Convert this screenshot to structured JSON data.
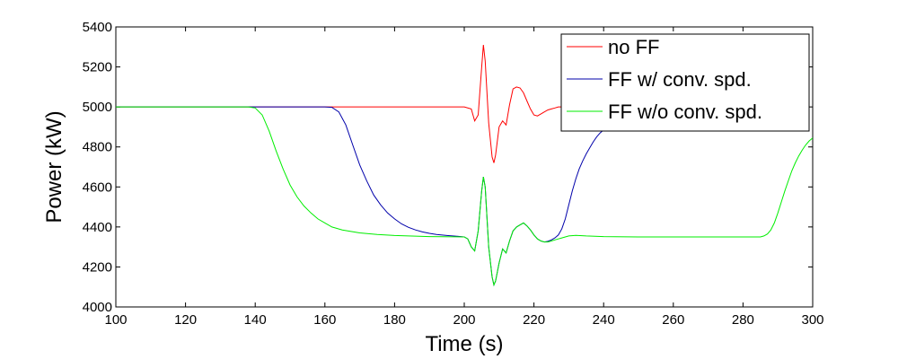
{
  "chart_data": {
    "type": "line",
    "title": "",
    "xlabel": "Time (s)",
    "ylabel": "Power (kW)",
    "xlim": [
      100,
      300
    ],
    "ylim": [
      4000,
      5400
    ],
    "xticks": [
      100,
      120,
      140,
      160,
      180,
      200,
      220,
      240,
      260,
      280,
      300
    ],
    "yticks": [
      4000,
      4200,
      4400,
      4600,
      4800,
      5000,
      5200,
      5400
    ],
    "grid": false,
    "legend_position": "top-right",
    "series": [
      {
        "name": "no FF",
        "color": "#ff0000",
        "x": [
          100,
          200,
          202,
          203,
          204,
          205,
          205.5,
          206,
          207,
          208,
          208.5,
          209,
          210,
          211,
          212,
          213,
          214,
          215,
          216,
          217,
          218,
          219,
          220,
          221,
          222,
          223,
          224,
          225,
          226,
          227,
          228,
          229,
          230
        ],
        "y": [
          5000,
          5000,
          4990,
          4930,
          4960,
          5200,
          5310,
          5230,
          4920,
          4750,
          4720,
          4760,
          4900,
          4930,
          4910,
          5010,
          5090,
          5100,
          5095,
          5070,
          5030,
          4990,
          4960,
          4955,
          4965,
          4975,
          4985,
          4990,
          4995,
          5000,
          5000,
          5000,
          5000
        ]
      },
      {
        "name": "FF w/ conv. spd.",
        "color": "#0000aa",
        "x": [
          100,
          160,
          162,
          164,
          166,
          168,
          170,
          172,
          174,
          176,
          178,
          180,
          182,
          184,
          186,
          188,
          190,
          192,
          195,
          198,
          200,
          201,
          202,
          203,
          204,
          205,
          205.5,
          206,
          207,
          208,
          208.5,
          209,
          210,
          211,
          212,
          213,
          214,
          215,
          216,
          217,
          218,
          219,
          220,
          221,
          222,
          223,
          224,
          225,
          226,
          227,
          228,
          229,
          230,
          231,
          232,
          233,
          234,
          235,
          236,
          237,
          238,
          239,
          240,
          241,
          242,
          243
        ],
        "y": [
          5000,
          5000,
          4998,
          4975,
          4910,
          4810,
          4710,
          4630,
          4560,
          4510,
          4470,
          4440,
          4415,
          4398,
          4385,
          4375,
          4368,
          4362,
          4357,
          4353,
          4350,
          4340,
          4300,
          4280,
          4380,
          4580,
          4650,
          4600,
          4300,
          4150,
          4110,
          4130,
          4220,
          4290,
          4270,
          4330,
          4380,
          4400,
          4410,
          4420,
          4405,
          4385,
          4360,
          4340,
          4330,
          4325,
          4328,
          4335,
          4345,
          4360,
          4390,
          4440,
          4510,
          4580,
          4640,
          4690,
          4730,
          4765,
          4795,
          4825,
          4850,
          4870,
          4885,
          4895,
          4905,
          4910
        ]
      },
      {
        "name": "FF w/o conv. spd.",
        "color": "#00ee00",
        "x": [
          100,
          138,
          140,
          142,
          144,
          146,
          148,
          150,
          152,
          154,
          156,
          158,
          160,
          162,
          165,
          170,
          175,
          180,
          190,
          200,
          201,
          202,
          203,
          204,
          205,
          205.5,
          206,
          207,
          208,
          208.5,
          209,
          210,
          211,
          212,
          213,
          214,
          215,
          216,
          217,
          218,
          219,
          220,
          221,
          222,
          223,
          224,
          225,
          226,
          227,
          228,
          229,
          230,
          232,
          235,
          240,
          250,
          260,
          270,
          280,
          285,
          286,
          287,
          288,
          289,
          290,
          291,
          292,
          293,
          294,
          295,
          296,
          297,
          298,
          299,
          300
        ],
        "y": [
          5000,
          5000,
          4995,
          4960,
          4880,
          4780,
          4690,
          4610,
          4550,
          4505,
          4470,
          4440,
          4420,
          4400,
          4385,
          4370,
          4362,
          4357,
          4352,
          4350,
          4340,
          4300,
          4280,
          4380,
          4580,
          4650,
          4600,
          4300,
          4150,
          4110,
          4130,
          4220,
          4290,
          4270,
          4330,
          4380,
          4400,
          4410,
          4420,
          4405,
          4385,
          4360,
          4340,
          4330,
          4325,
          4325,
          4330,
          4335,
          4340,
          4345,
          4350,
          4355,
          4358,
          4355,
          4352,
          4350,
          4350,
          4350,
          4350,
          4350,
          4355,
          4365,
          4385,
          4420,
          4470,
          4525,
          4580,
          4630,
          4680,
          4720,
          4755,
          4785,
          4810,
          4830,
          4845
        ]
      }
    ]
  }
}
